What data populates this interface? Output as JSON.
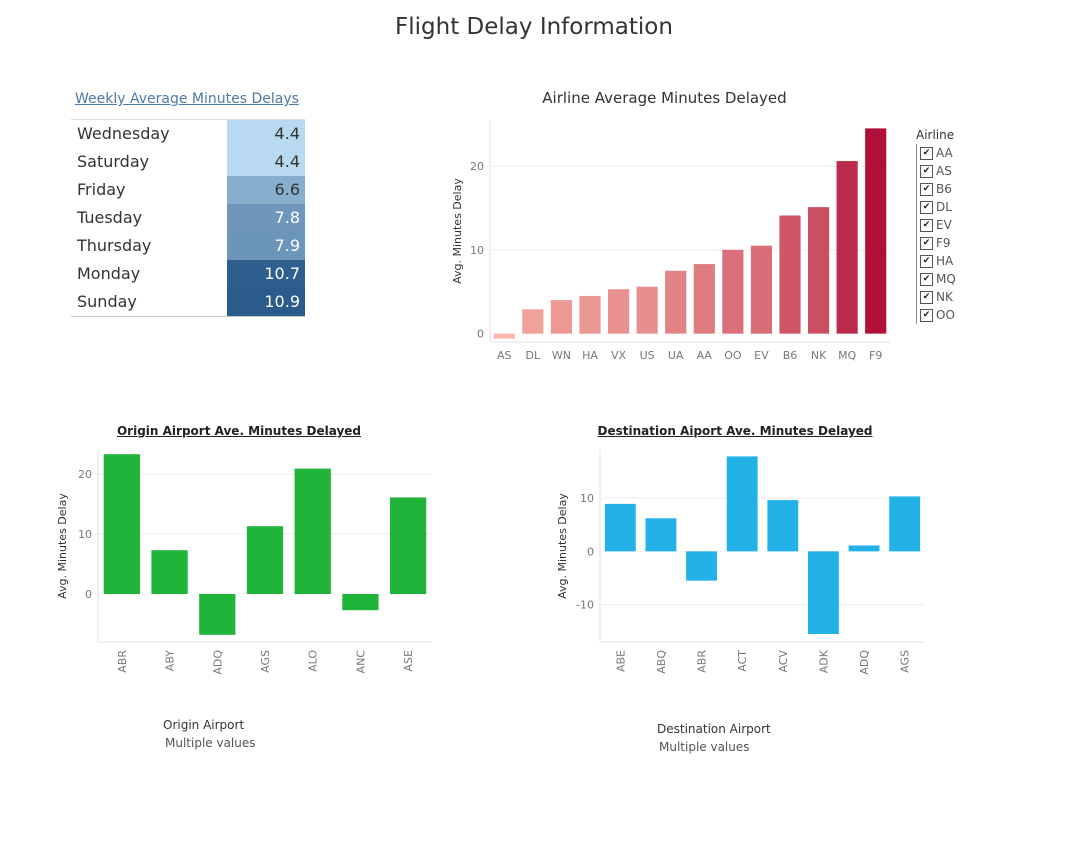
{
  "dashboard_title": "Flight Delay Information",
  "colors": {
    "weekly_light": "#b8d9f0",
    "weekly_dark": "#2b5b8b",
    "origin_bar": "#21b43a",
    "dest_bar": "#23b2e8",
    "airline_low": "#f9b8aa",
    "airline_high": "#b01038"
  },
  "filters": {
    "origin": {
      "label": "Origin Airport",
      "value": "Multiple values"
    },
    "destination": {
      "label": "Destination Airport",
      "value": "Multiple values"
    }
  },
  "legend": {
    "title": "Airline",
    "items": [
      "AA",
      "AS",
      "B6",
      "DL",
      "EV",
      "F9",
      "HA",
      "MQ",
      "NK",
      "OO"
    ]
  },
  "chart_data": [
    {
      "type": "table",
      "title": "Weekly Average Minutes Delays",
      "rows": [
        {
          "day": "Wednesday",
          "value": "4.4"
        },
        {
          "day": "Saturday",
          "value": "4.4"
        },
        {
          "day": "Friday",
          "value": "6.6"
        },
        {
          "day": "Tuesday",
          "value": "7.8"
        },
        {
          "day": "Thursday",
          "value": "7.9"
        },
        {
          "day": "Monday",
          "value": "10.7"
        },
        {
          "day": "Sunday",
          "value": "10.9"
        }
      ]
    },
    {
      "type": "bar",
      "title": "Airline Average Minutes Delayed",
      "ylabel": "Avg. Minutes Delay",
      "categories": [
        "AS",
        "DL",
        "WN",
        "HA",
        "VX",
        "US",
        "UA",
        "AA",
        "OO",
        "EV",
        "B6",
        "NK",
        "MQ",
        "F9"
      ],
      "values": [
        -0.6,
        2.9,
        4.0,
        4.5,
        5.3,
        5.6,
        7.5,
        8.3,
        10.0,
        10.5,
        14.1,
        15.1,
        20.6,
        24.5
      ],
      "yticks": [
        0,
        10,
        20
      ],
      "ylim": [
        -1,
        25.5
      ]
    },
    {
      "type": "bar",
      "title": "Origin Airport Ave. Minutes Delayed",
      "ylabel": "Avg. Minutes Delay",
      "categories": [
        "ABR",
        "ABY",
        "ADQ",
        "AGS",
        "ALO",
        "ANC",
        "ASE"
      ],
      "values": [
        23.3,
        7.3,
        -6.8,
        11.3,
        20.9,
        -2.7,
        16.1
      ],
      "yticks": [
        0,
        10,
        20
      ],
      "ylim": [
        -8,
        24
      ]
    },
    {
      "type": "bar",
      "title": "Destination Aiport Ave. Minutes Delayed",
      "ylabel": "Avg. Minutes Delay",
      "categories": [
        "ABE",
        "ABQ",
        "ABR",
        "ACT",
        "ACV",
        "ADK",
        "ADQ",
        "AGS"
      ],
      "values": [
        8.9,
        6.2,
        -5.5,
        17.8,
        9.6,
        -15.5,
        1.1,
        10.3
      ],
      "yticks": [
        -10,
        0,
        10
      ],
      "ylim": [
        -17,
        19
      ]
    }
  ]
}
